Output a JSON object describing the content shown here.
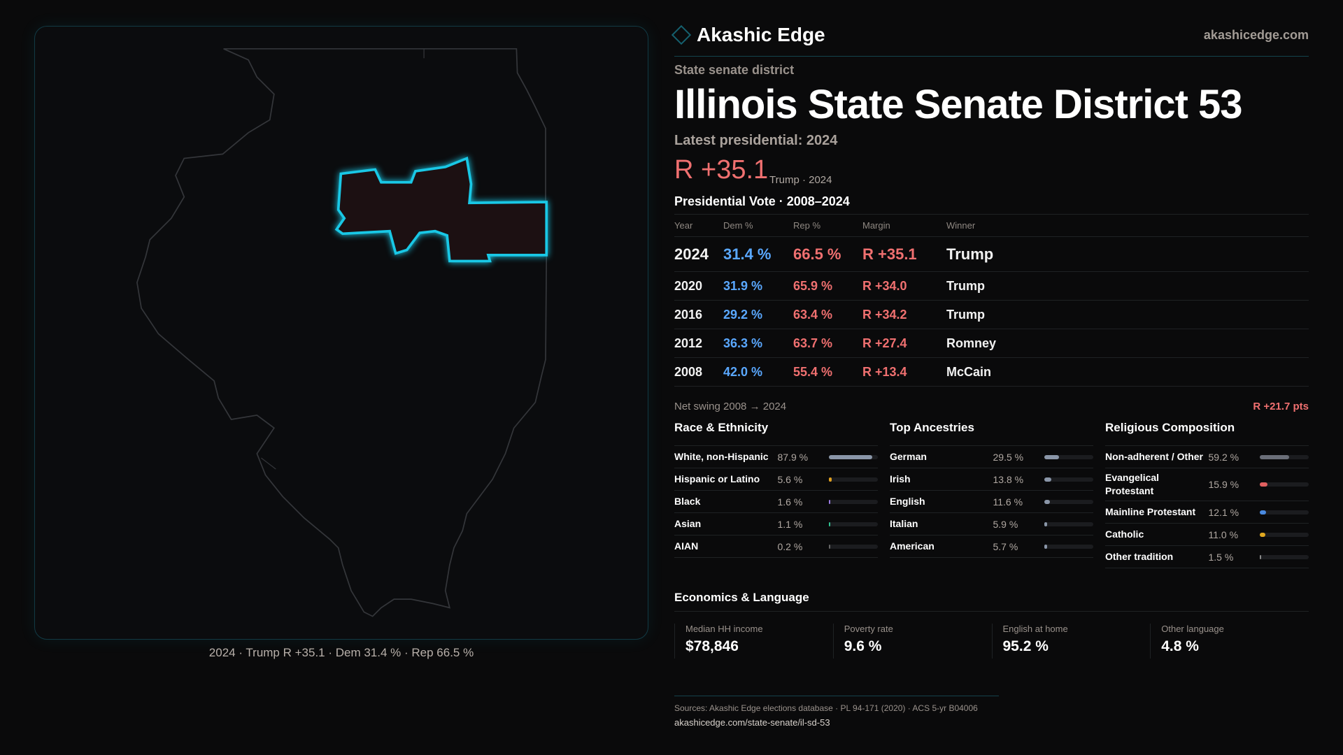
{
  "brand": {
    "name": "Akashic Edge",
    "site": "akashicedge.com"
  },
  "header": {
    "kind": "State senate district",
    "title": "Illinois State Senate District 53",
    "latest": "Latest presidential: 2024",
    "margin": "R +35.1",
    "margin_sub": "Trump · 2024"
  },
  "map": {
    "caption": "2024 · Trump R +35.1 · Dem 31.4 % · Rep 66.5 %",
    "highlight_color": "#19c8e6"
  },
  "vote": {
    "title": "Presidential Vote · 2008–2024",
    "columns": [
      "Year",
      "Dem %",
      "Rep %",
      "Margin",
      "Winner"
    ],
    "rows": [
      {
        "year": "2024",
        "dem": "31.4 %",
        "rep": "66.5 %",
        "margin": "R +35.1",
        "winner": "Trump"
      },
      {
        "year": "2020",
        "dem": "31.9 %",
        "rep": "65.9 %",
        "margin": "R +34.0",
        "winner": "Trump"
      },
      {
        "year": "2016",
        "dem": "29.2 %",
        "rep": "63.4 %",
        "margin": "R +34.2",
        "winner": "Trump"
      },
      {
        "year": "2012",
        "dem": "36.3 %",
        "rep": "63.7 %",
        "margin": "R +27.4",
        "winner": "Romney"
      },
      {
        "year": "2008",
        "dem": "42.0 %",
        "rep": "55.4 %",
        "margin": "R +13.4",
        "winner": "McCain"
      }
    ],
    "swing_label": "Net swing 2008 → 2024",
    "swing_value": "R +21.7 pts"
  },
  "race": {
    "title": "Race & Ethnicity",
    "items": [
      {
        "label": "White, non-Hispanic",
        "pct": "87.9 %",
        "value": 87.9,
        "color": "#8a96a8"
      },
      {
        "label": "Hispanic or Latino",
        "pct": "5.6 %",
        "value": 5.6,
        "color": "#e0a020"
      },
      {
        "label": "Black",
        "pct": "1.6 %",
        "value": 1.6,
        "color": "#9a7ae0"
      },
      {
        "label": "Asian",
        "pct": "1.1 %",
        "value": 1.1,
        "color": "#30c090"
      },
      {
        "label": "AIAN",
        "pct": "0.2 %",
        "value": 0.2,
        "color": "#666"
      }
    ]
  },
  "ancestry": {
    "title": "Top Ancestries",
    "items": [
      {
        "label": "German",
        "pct": "29.5 %",
        "value": 29.5,
        "color": "#8a96a8"
      },
      {
        "label": "Irish",
        "pct": "13.8 %",
        "value": 13.8,
        "color": "#8a96a8"
      },
      {
        "label": "English",
        "pct": "11.6 %",
        "value": 11.6,
        "color": "#8a96a8"
      },
      {
        "label": "Italian",
        "pct": "5.9 %",
        "value": 5.9,
        "color": "#8a96a8"
      },
      {
        "label": "American",
        "pct": "5.7 %",
        "value": 5.7,
        "color": "#8a96a8"
      }
    ]
  },
  "religion": {
    "title": "Religious Composition",
    "items": [
      {
        "label": "Non-adherent / Other",
        "pct": "59.2 %",
        "value": 59.2,
        "color": "#6a6e78"
      },
      {
        "label": "Evangelical Protestant",
        "pct": "15.9 %",
        "value": 15.9,
        "color": "#e06060"
      },
      {
        "label": "Mainline Protestant",
        "pct": "12.1 %",
        "value": 12.1,
        "color": "#4a8ae0"
      },
      {
        "label": "Catholic",
        "pct": "11.0 %",
        "value": 11.0,
        "color": "#e0a820"
      },
      {
        "label": "Other tradition",
        "pct": "1.5 %",
        "value": 1.5,
        "color": "#888"
      }
    ]
  },
  "economics": {
    "title": "Economics & Language",
    "cards": [
      {
        "label": "Median HH income",
        "value": "$78,846"
      },
      {
        "label": "Poverty rate",
        "value": "9.6 %"
      },
      {
        "label": "English at home",
        "value": "95.2 %"
      },
      {
        "label": "Other language",
        "value": "4.8 %"
      }
    ]
  },
  "footer": {
    "sources": "Sources: Akashic Edge elections database · PL 94-171 (2020) · ACS 5-yr B04006",
    "url": "akashicedge.com/state-senate/il-sd-53"
  }
}
